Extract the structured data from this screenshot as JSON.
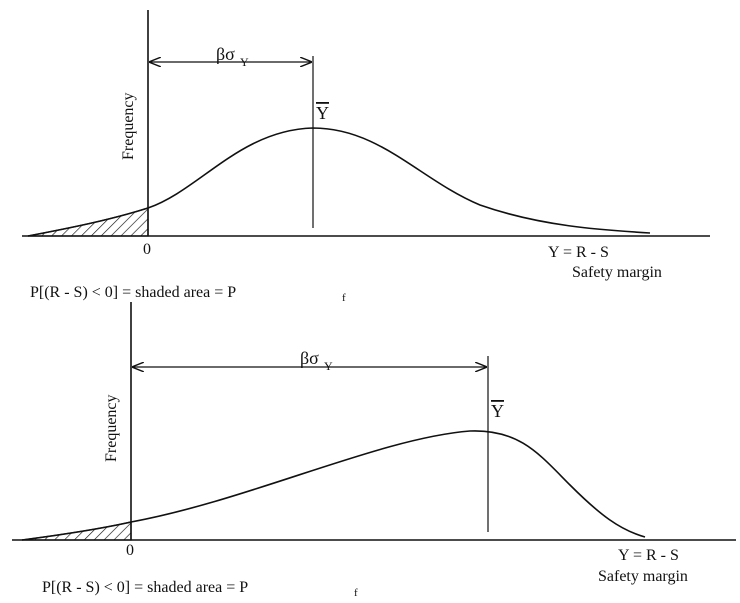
{
  "panels": [
    {
      "y_axis_label": "Frequency",
      "origin_label": "0",
      "mean_label": "Y",
      "beta_label": "βσ",
      "beta_sub": "Y",
      "x_label_top": "Y = R - S",
      "x_label_bottom": "Safety margin",
      "prob_text": "P[(R - S) < 0] = shaded area = P",
      "prob_sub": "f"
    },
    {
      "y_axis_label": "Frequency",
      "origin_label": "0",
      "mean_label": "Y",
      "beta_label": "βσ",
      "beta_sub": "Y",
      "x_label_top": "Y = R - S",
      "x_label_bottom": "Safety margin",
      "prob_text": "P[(R - S) < 0] = shaded area = P",
      "prob_sub": "f"
    }
  ],
  "colors": {
    "line": "#111111",
    "background": "#ffffff"
  }
}
